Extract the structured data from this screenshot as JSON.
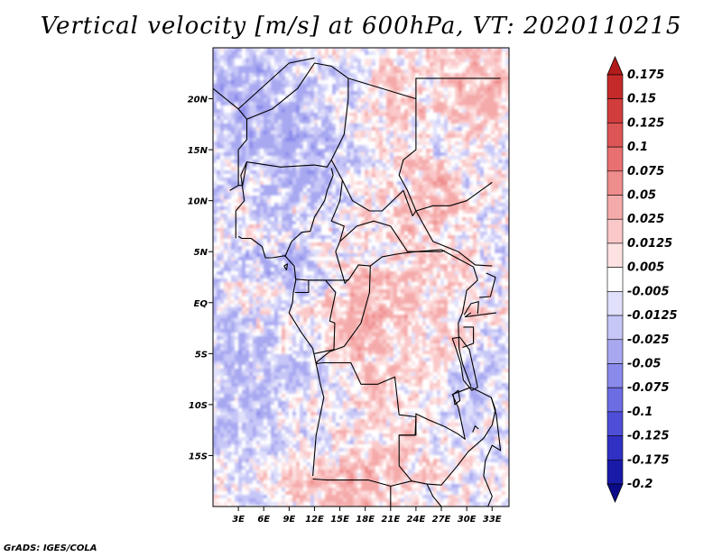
{
  "title": "Vertical velocity [m/s] at 600hPa, VT: 2020110215",
  "footer": "GrADS: IGES/COLA",
  "map": {
    "lat_labels": [
      {
        "lat": 20,
        "label": "20N"
      },
      {
        "lat": 15,
        "label": "15N"
      },
      {
        "lat": 10,
        "label": "10N"
      },
      {
        "lat": 5,
        "label": "5N"
      },
      {
        "lat": 0,
        "label": "EQ"
      },
      {
        "lat": -5,
        "label": "5S"
      },
      {
        "lat": -10,
        "label": "10S"
      },
      {
        "lat": -15,
        "label": "15S"
      }
    ],
    "lon_labels": [
      {
        "lon": 3,
        "label": "3E"
      },
      {
        "lon": 6,
        "label": "6E"
      },
      {
        "lon": 9,
        "label": "9E"
      },
      {
        "lon": 12,
        "label": "12E"
      },
      {
        "lon": 15,
        "label": "15E"
      },
      {
        "lon": 18,
        "label": "18E"
      },
      {
        "lon": 21,
        "label": "21E"
      },
      {
        "lon": 24,
        "label": "24E"
      },
      {
        "lon": 27,
        "label": "27E"
      },
      {
        "lon": 30,
        "label": "30E"
      },
      {
        "lon": 33,
        "label": "33E"
      }
    ]
  },
  "colorbar": {
    "labels": [
      "0.175",
      "0.15",
      "0.125",
      "0.1",
      "0.075",
      "0.05",
      "0.025",
      "0.0125",
      "0.005",
      "-0.005",
      "-0.0125",
      "-0.025",
      "-0.05",
      "-0.075",
      "-0.1",
      "-0.125",
      "-0.175",
      "-0.2"
    ],
    "colors": [
      "#b31b1b",
      "#c42a2a",
      "#d13c3c",
      "#de5555",
      "#e87070",
      "#ef8c8c",
      "#f5aaaa",
      "#fac8c8",
      "#fde2e2",
      "#ffffff",
      "#e0e0fb",
      "#c6c6f7",
      "#a8a8f1",
      "#8a8aec",
      "#6c6ce3",
      "#4e4ed8",
      "#3030c4",
      "#1a1aa8",
      "#0c0c8a"
    ]
  },
  "chart_data": {
    "type": "heatmap",
    "title": "Vertical velocity [m/s] at 600hPa, VT: 2020110215",
    "variable": "Vertical velocity",
    "units": "m/s",
    "level": "600hPa",
    "valid_time": "2020110215",
    "lon_range": [
      0,
      35
    ],
    "lat_range": [
      -20,
      25
    ],
    "contour_levels": [
      -0.2,
      -0.175,
      -0.125,
      -0.1,
      -0.075,
      -0.05,
      -0.025,
      -0.0125,
      -0.005,
      0.005,
      0.0125,
      0.025,
      0.05,
      0.075,
      0.1,
      0.125,
      0.15,
      0.175
    ]
  }
}
